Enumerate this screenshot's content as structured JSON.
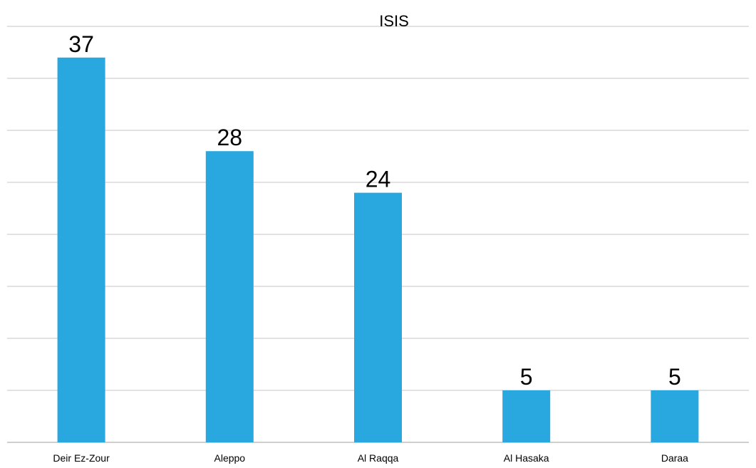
{
  "chart_data": {
    "type": "bar",
    "title": "ISIS",
    "categories": [
      "Deir Ez-Zour",
      "Aleppo",
      "Al Raqqa",
      "Al Hasaka",
      "Daraa"
    ],
    "values": [
      37,
      28,
      24,
      5,
      5
    ],
    "xlabel": "",
    "ylabel": "",
    "ylim": [
      0,
      40
    ],
    "grid": true,
    "bar_color": "#29a8e0",
    "grid_color": "#d9d9d9",
    "data_labels": true
  }
}
